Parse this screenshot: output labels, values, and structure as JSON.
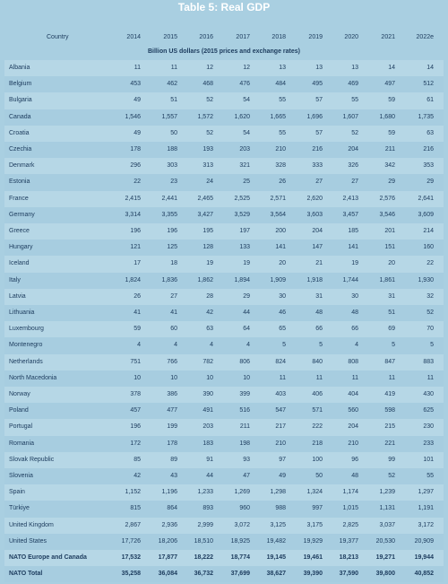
{
  "header": {
    "title": "Table 5: Real GDP",
    "subtitle": "Billion US dollars (2015 prices and exchange rates)"
  },
  "table": {
    "columns": [
      "Country",
      "2014",
      "2015",
      "2016",
      "2017",
      "2018",
      "2019",
      "2020",
      "2021",
      "2022e"
    ],
    "rows": [
      [
        "Albania",
        "11",
        "11",
        "12",
        "12",
        "13",
        "13",
        "13",
        "14",
        "14"
      ],
      [
        "Belgium",
        "453",
        "462",
        "468",
        "476",
        "484",
        "495",
        "469",
        "497",
        "512"
      ],
      [
        "Bulgaria",
        "49",
        "51",
        "52",
        "54",
        "55",
        "57",
        "55",
        "59",
        "61"
      ],
      [
        "Canada",
        "1,546",
        "1,557",
        "1,572",
        "1,620",
        "1,665",
        "1,696",
        "1,607",
        "1,680",
        "1,735"
      ],
      [
        "Croatia",
        "49",
        "50",
        "52",
        "54",
        "55",
        "57",
        "52",
        "59",
        "63"
      ],
      [
        "Czechia",
        "178",
        "188",
        "193",
        "203",
        "210",
        "216",
        "204",
        "211",
        "216"
      ],
      [
        "Denmark",
        "296",
        "303",
        "313",
        "321",
        "328",
        "333",
        "326",
        "342",
        "353"
      ],
      [
        "Estonia",
        "22",
        "23",
        "24",
        "25",
        "26",
        "27",
        "27",
        "29",
        "29"
      ],
      [
        "France",
        "2,415",
        "2,441",
        "2,465",
        "2,525",
        "2,571",
        "2,620",
        "2,413",
        "2,576",
        "2,641"
      ],
      [
        "Germany",
        "3,314",
        "3,355",
        "3,427",
        "3,529",
        "3,564",
        "3,603",
        "3,457",
        "3,546",
        "3,609"
      ],
      [
        "Greece",
        "196",
        "196",
        "195",
        "197",
        "200",
        "204",
        "185",
        "201",
        "214"
      ],
      [
        "Hungary",
        "121",
        "125",
        "128",
        "133",
        "141",
        "147",
        "141",
        "151",
        "160"
      ],
      [
        "Iceland",
        "17",
        "18",
        "19",
        "19",
        "20",
        "21",
        "19",
        "20",
        "22"
      ],
      [
        "Italy",
        "1,824",
        "1,836",
        "1,862",
        "1,894",
        "1,909",
        "1,918",
        "1,744",
        "1,861",
        "1,930"
      ],
      [
        "Latvia",
        "26",
        "27",
        "28",
        "29",
        "30",
        "31",
        "30",
        "31",
        "32"
      ],
      [
        "Lithuania",
        "41",
        "41",
        "42",
        "44",
        "46",
        "48",
        "48",
        "51",
        "52"
      ],
      [
        "Luxembourg",
        "59",
        "60",
        "63",
        "64",
        "65",
        "66",
        "66",
        "69",
        "70"
      ],
      [
        "Montenegro",
        "4",
        "4",
        "4",
        "4",
        "5",
        "5",
        "4",
        "5",
        "5"
      ],
      [
        "Netherlands",
        "751",
        "766",
        "782",
        "806",
        "824",
        "840",
        "808",
        "847",
        "883"
      ],
      [
        "North Macedonia",
        "10",
        "10",
        "10",
        "10",
        "11",
        "11",
        "11",
        "11",
        "11"
      ],
      [
        "Norway",
        "378",
        "386",
        "390",
        "399",
        "403",
        "406",
        "404",
        "419",
        "430"
      ],
      [
        "Poland",
        "457",
        "477",
        "491",
        "516",
        "547",
        "571",
        "560",
        "598",
        "625"
      ],
      [
        "Portugal",
        "196",
        "199",
        "203",
        "211",
        "217",
        "222",
        "204",
        "215",
        "230"
      ],
      [
        "Romania",
        "172",
        "178",
        "183",
        "198",
        "210",
        "218",
        "210",
        "221",
        "233"
      ],
      [
        "Slovak Republic",
        "85",
        "89",
        "91",
        "93",
        "97",
        "100",
        "96",
        "99",
        "101"
      ],
      [
        "Slovenia",
        "42",
        "43",
        "44",
        "47",
        "49",
        "50",
        "48",
        "52",
        "55"
      ],
      [
        "Spain",
        "1,152",
        "1,196",
        "1,233",
        "1,269",
        "1,298",
        "1,324",
        "1,174",
        "1,239",
        "1,297"
      ],
      [
        "Türkiye",
        "815",
        "864",
        "893",
        "960",
        "988",
        "997",
        "1,015",
        "1,131",
        "1,191"
      ],
      [
        "United Kingdom",
        "2,867",
        "2,936",
        "2,999",
        "3,072",
        "3,125",
        "3,175",
        "2,825",
        "3,037",
        "3,172"
      ],
      [
        "United States",
        "17,726",
        "18,206",
        "18,510",
        "18,925",
        "19,482",
        "19,929",
        "19,377",
        "20,530",
        "20,909"
      ],
      [
        "NATO Europe and Canada",
        "17,532",
        "17,877",
        "18,222",
        "18,774",
        "19,145",
        "19,461",
        "18,213",
        "19,271",
        "19,944"
      ],
      [
        "NATO Total",
        "35,258",
        "36,084",
        "36,732",
        "37,699",
        "38,627",
        "39,390",
        "37,590",
        "39,800",
        "40,852"
      ]
    ]
  }
}
